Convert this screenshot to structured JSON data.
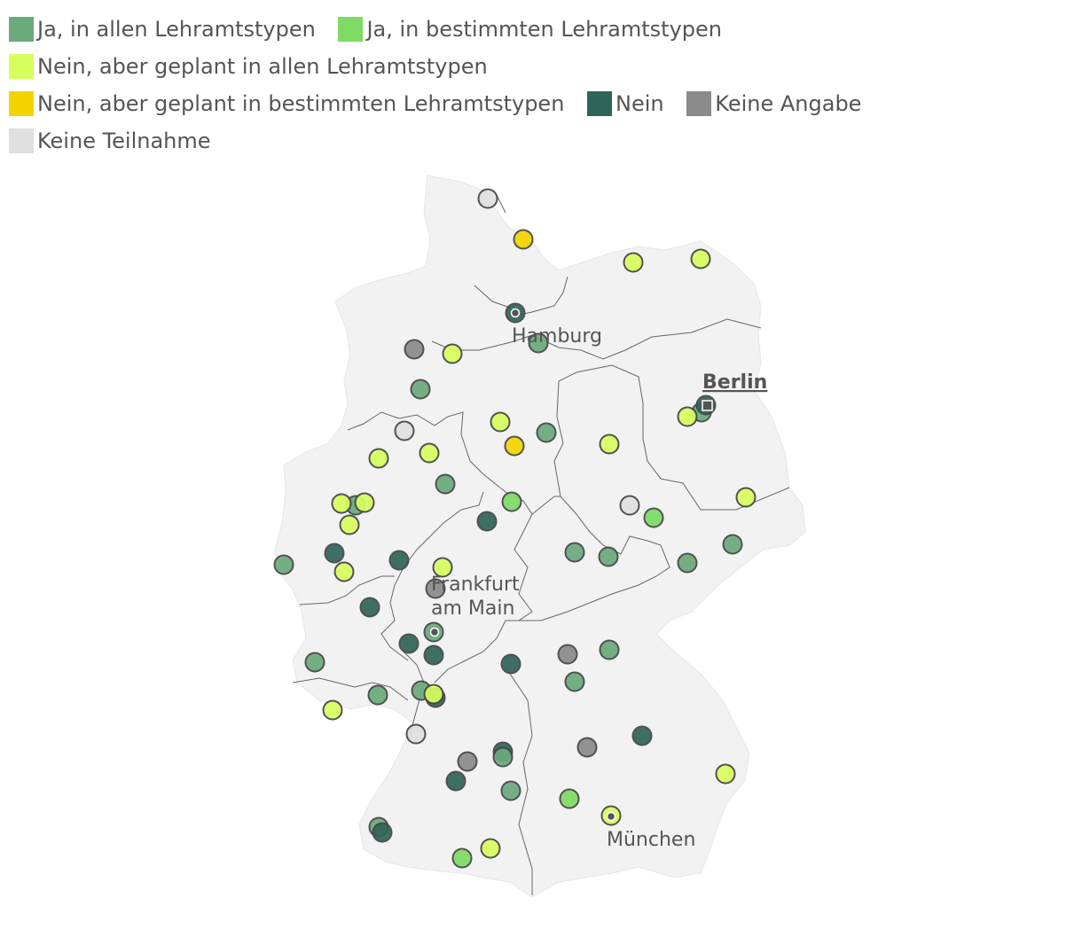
{
  "legend": [
    {
      "label": "Ja, in allen Lehramtstypen",
      "color": "#6aaa7b",
      "key": "ja-alle"
    },
    {
      "label": "Ja, in bestimmten Lehramtstypen",
      "color": "#7ddb63",
      "key": "ja-bestimmt"
    },
    {
      "label": "Nein, aber geplant in allen Lehramtstypen",
      "color": "#d6ff5e",
      "key": "geplant-alle"
    },
    {
      "label": "Nein, aber geplant in bestimmten Lehramtstypen",
      "color": "#f4d400",
      "key": "geplant-bestimmt"
    },
    {
      "label": "Nein",
      "color": "#2f6459",
      "key": "nein"
    },
    {
      "label": "Keine Angabe",
      "color": "#8a8a8a",
      "key": "keine-angabe"
    },
    {
      "label": "Keine Teilnahme",
      "color": "#e0e0e0",
      "key": "keine-teilnahme"
    }
  ],
  "cities": {
    "hamburg": "Hamburg",
    "berlin": "Berlin",
    "frankfurt_line1": "Frankfurt",
    "frankfurt_line2": "am Main",
    "muenchen": "München"
  }
}
